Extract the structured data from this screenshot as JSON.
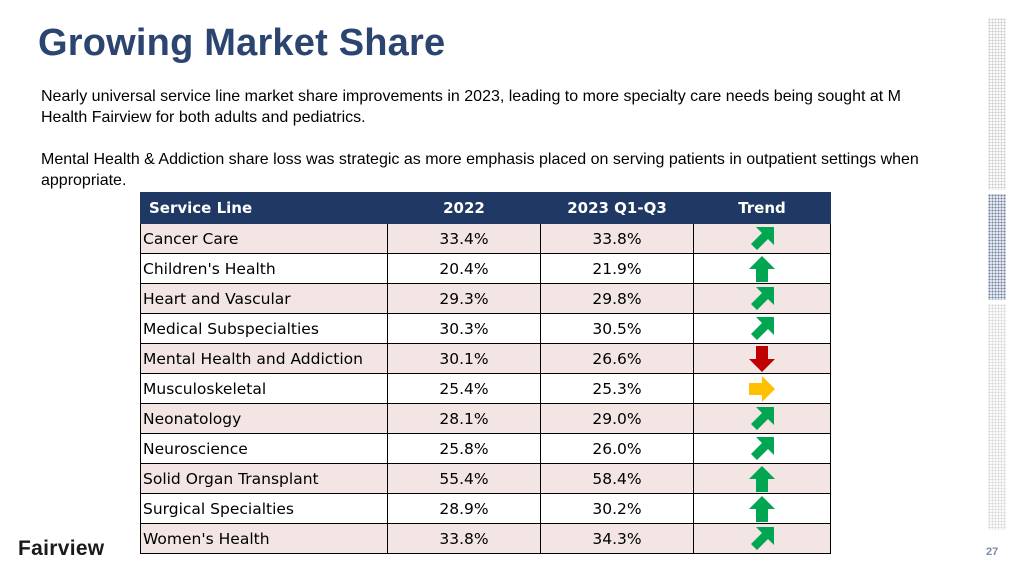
{
  "title": "Growing Market Share",
  "paragraphs": [
    "Nearly universal service line market share improvements in 2023, leading to more specialty care needs being sought at M Health Fairview for both adults and pediatrics.",
    "Mental Health & Addiction share loss was strategic as more emphasis placed on serving patients in outpatient settings when appropriate."
  ],
  "table": {
    "headers": [
      "Service Line",
      "2022",
      "2023 Q1-Q3",
      "Trend"
    ],
    "rows": [
      {
        "service_line": "Cancer Care",
        "y2022": "33.4%",
        "y2023": "33.8%",
        "trend": "up-right"
      },
      {
        "service_line": "Children's Health",
        "y2022": "20.4%",
        "y2023": "21.9%",
        "trend": "up"
      },
      {
        "service_line": "Heart and Vascular",
        "y2022": "29.3%",
        "y2023": "29.8%",
        "trend": "up-right"
      },
      {
        "service_line": "Medical Subspecialties",
        "y2022": "30.3%",
        "y2023": "30.5%",
        "trend": "up-right"
      },
      {
        "service_line": "Mental Health and Addiction",
        "y2022": "30.1%",
        "y2023": "26.6%",
        "trend": "down"
      },
      {
        "service_line": "Musculoskeletal",
        "y2022": "25.4%",
        "y2023": "25.3%",
        "trend": "right"
      },
      {
        "service_line": "Neonatology",
        "y2022": "28.1%",
        "y2023": "29.0%",
        "trend": "up-right"
      },
      {
        "service_line": "Neuroscience",
        "y2022": "25.8%",
        "y2023": "26.0%",
        "trend": "up-right"
      },
      {
        "service_line": "Solid Organ Transplant",
        "y2022": "55.4%",
        "y2023": "58.4%",
        "trend": "up"
      },
      {
        "service_line": "Surgical Specialties",
        "y2022": "28.9%",
        "y2023": "30.2%",
        "trend": "up"
      },
      {
        "service_line": "Women's Health",
        "y2022": "33.8%",
        "y2023": "34.3%",
        "trend": "up-right"
      }
    ]
  },
  "trend_colors": {
    "up": "#00a651",
    "up-right": "#00a651",
    "down": "#c00000",
    "right": "#ffc000"
  },
  "logo": "Fairview",
  "page_number": "27"
}
